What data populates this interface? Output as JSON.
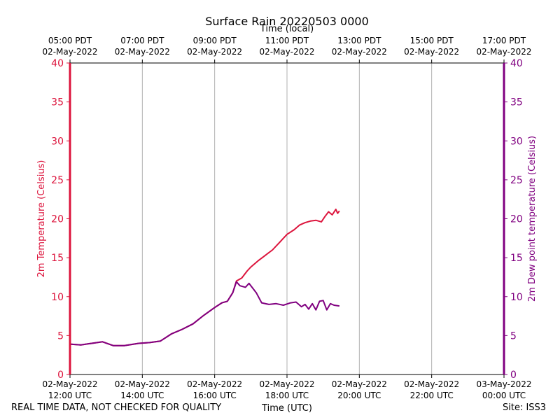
{
  "title": "Surface Rain 20220503 0000",
  "footer": {
    "left": "REAL TIME DATA, NOT CHECKED FOR QUALITY",
    "right": "Site: ISS3"
  },
  "colors": {
    "temperature": "#dc143c",
    "dewpoint": "#800080",
    "grid": "#b0b0b0",
    "axis": "#000000"
  },
  "chart_data": {
    "type": "line",
    "title": "Surface Rain 20220503 0000",
    "xlabel": "Time (UTC)",
    "x2label": "Time (local)",
    "ylabel": "2m Temperature (Celsius)",
    "y2label": "2m Dew point temperature (Celsius)",
    "xlim_hours_utc": [
      12,
      24
    ],
    "ylim": [
      0,
      40
    ],
    "y2lim": [
      0,
      40
    ],
    "yticks": [
      0,
      5,
      10,
      15,
      20,
      25,
      30,
      35,
      40
    ],
    "grid": "vertical",
    "xticks_bottom": [
      {
        "h": 12,
        "line1": "02-May-2022",
        "line2": "12:00 UTC"
      },
      {
        "h": 14,
        "line1": "02-May-2022",
        "line2": "14:00 UTC"
      },
      {
        "h": 16,
        "line1": "02-May-2022",
        "line2": "16:00 UTC"
      },
      {
        "h": 18,
        "line1": "02-May-2022",
        "line2": "18:00 UTC"
      },
      {
        "h": 20,
        "line1": "02-May-2022",
        "line2": "20:00 UTC"
      },
      {
        "h": 22,
        "line1": "02-May-2022",
        "line2": "22:00 UTC"
      },
      {
        "h": 24,
        "line1": "03-May-2022",
        "line2": "00:00 UTC"
      }
    ],
    "xticks_top": [
      {
        "h": 12,
        "line1": "05:00 PDT",
        "line2": "02-May-2022"
      },
      {
        "h": 14,
        "line1": "07:00 PDT",
        "line2": "02-May-2022"
      },
      {
        "h": 16,
        "line1": "09:00 PDT",
        "line2": "02-May-2022"
      },
      {
        "h": 18,
        "line1": "11:00 PDT",
        "line2": "02-May-2022"
      },
      {
        "h": 20,
        "line1": "13:00 PDT",
        "line2": "02-May-2022"
      },
      {
        "h": 22,
        "line1": "15:00 PDT",
        "line2": "02-May-2022"
      },
      {
        "h": 24,
        "line1": "17:00 PDT",
        "line2": "02-May-2022"
      }
    ],
    "series": [
      {
        "name": "2m Temperature",
        "axis": "left",
        "x": [
          12.0,
          12.3,
          12.6,
          12.9,
          13.2,
          13.5,
          13.9,
          14.2,
          14.5,
          14.8,
          15.1,
          15.4,
          15.7,
          16.0,
          16.2,
          16.35,
          16.5,
          16.6,
          16.75,
          16.9,
          17.0,
          17.2,
          17.4,
          17.6,
          17.8,
          18.0,
          18.2,
          18.35,
          18.5,
          18.65,
          18.8,
          18.95,
          19.05,
          19.15,
          19.25,
          19.35,
          19.4,
          19.45
        ],
        "values": [
          3.9,
          3.8,
          4.0,
          4.2,
          3.7,
          3.7,
          4.0,
          4.1,
          4.3,
          5.2,
          5.8,
          6.5,
          7.6,
          8.6,
          9.2,
          9.4,
          10.5,
          12.0,
          12.4,
          13.3,
          13.8,
          14.6,
          15.3,
          16.0,
          17.0,
          18.0,
          18.6,
          19.2,
          19.5,
          19.7,
          19.8,
          19.6,
          20.3,
          20.9,
          20.5,
          21.2,
          20.7,
          21.0
        ]
      },
      {
        "name": "2m Dew point temperature",
        "axis": "right",
        "x": [
          12.0,
          12.3,
          12.6,
          12.9,
          13.2,
          13.5,
          13.9,
          14.2,
          14.5,
          14.8,
          15.1,
          15.4,
          15.7,
          16.0,
          16.2,
          16.35,
          16.5,
          16.6,
          16.7,
          16.85,
          16.95,
          17.05,
          17.15,
          17.3,
          17.5,
          17.7,
          17.9,
          18.1,
          18.25,
          18.4,
          18.5,
          18.6,
          18.7,
          18.8,
          18.9,
          19.0,
          19.1,
          19.2,
          19.3,
          19.45
        ],
        "values": [
          3.9,
          3.8,
          4.0,
          4.2,
          3.7,
          3.7,
          4.0,
          4.1,
          4.3,
          5.2,
          5.8,
          6.5,
          7.6,
          8.6,
          9.2,
          9.4,
          10.5,
          11.9,
          11.4,
          11.2,
          11.7,
          11.1,
          10.5,
          9.2,
          9.0,
          9.1,
          8.9,
          9.2,
          9.3,
          8.7,
          9.0,
          8.4,
          9.1,
          8.3,
          9.4,
          9.5,
          8.3,
          9.1,
          8.9,
          8.8
        ]
      }
    ]
  }
}
